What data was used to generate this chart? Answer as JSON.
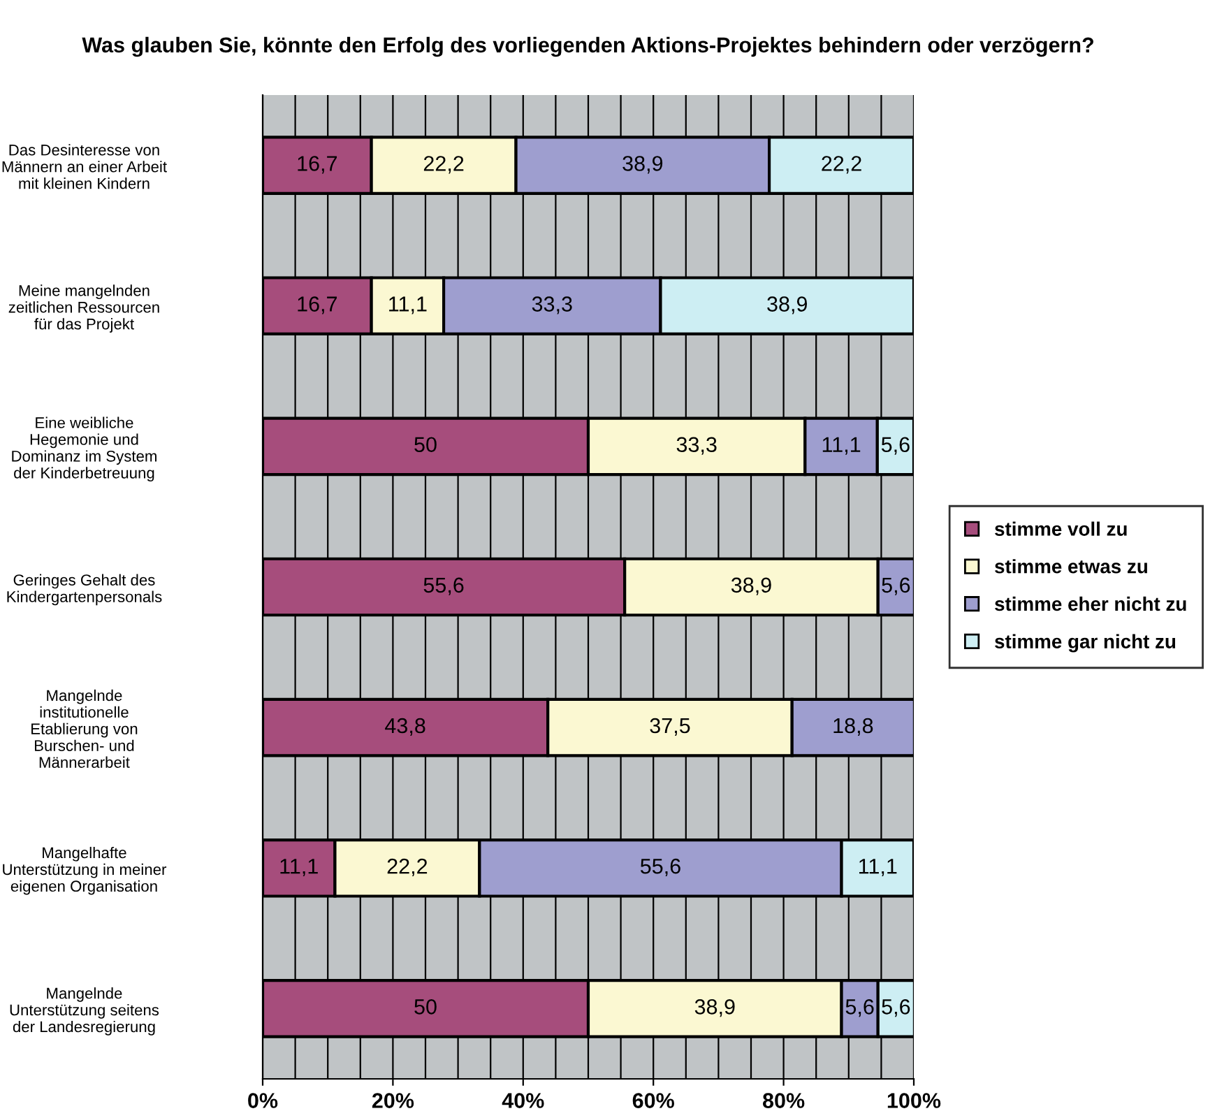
{
  "chart_data": {
    "type": "bar",
    "orientation": "horizontal",
    "stacked": true,
    "title": "Was glauben Sie, könnte den Erfolg des vorliegenden Aktions-Projektes behindern oder verzögern?",
    "categories": [
      "Das Desinteresse von Männern an einer Arbeit mit kleinen Kindern",
      "Meine mangelnden zeitlichen Ressourcen für das Projekt",
      "Eine weibliche Hegemonie und Dominanz im System der Kinderbetreuung",
      "Geringes Gehalt des Kindergartenpersonals",
      "Mangelnde institutionelle Etablierung von Burschen- und Männerarbeit",
      "Mangelhafte Unterstützung in meiner eigenen Organisation",
      "Mangelnde Unterstützung seitens der Landesregierung"
    ],
    "series": [
      {
        "name": "stimme voll zu",
        "color": "#a64d7c",
        "values": [
          16.7,
          16.7,
          50,
          55.6,
          43.8,
          11.1,
          50
        ],
        "value_labels": [
          "16,7",
          "16,7",
          "50",
          "55,6",
          "43,8",
          "11,1",
          "50"
        ]
      },
      {
        "name": "stimme etwas zu",
        "color": "#fbf8d2",
        "values": [
          22.2,
          11.1,
          33.3,
          38.9,
          37.5,
          22.2,
          38.9
        ],
        "value_labels": [
          "22,2",
          "11,1",
          "33,3",
          "38,9",
          "37,5",
          "22,2",
          "38,9"
        ]
      },
      {
        "name": "stimme eher nicht zu",
        "color": "#9e9ecf",
        "values": [
          38.9,
          33.3,
          11.1,
          5.6,
          18.8,
          55.6,
          5.6
        ],
        "value_labels": [
          "38,9",
          "33,3",
          "11,1",
          "5,6",
          "18,8",
          "55,6",
          "5,6"
        ]
      },
      {
        "name": "stimme gar nicht zu",
        "color": "#cdeef3",
        "values": [
          22.2,
          38.9,
          5.6,
          null,
          null,
          11.1,
          5.6
        ],
        "value_labels": [
          "22,2",
          "38,9",
          "5,6",
          null,
          null,
          "11,1",
          "5,6"
        ]
      }
    ],
    "xlim": [
      0,
      100
    ],
    "xticks": [
      {
        "value": 0,
        "label": "0%"
      },
      {
        "value": 20,
        "label": "20%"
      },
      {
        "value": 40,
        "label": "40%"
      },
      {
        "value": 60,
        "label": "60%"
      },
      {
        "value": 80,
        "label": "80%"
      },
      {
        "value": 100,
        "label": "100%"
      }
    ],
    "grid": "x",
    "legend": "right"
  }
}
